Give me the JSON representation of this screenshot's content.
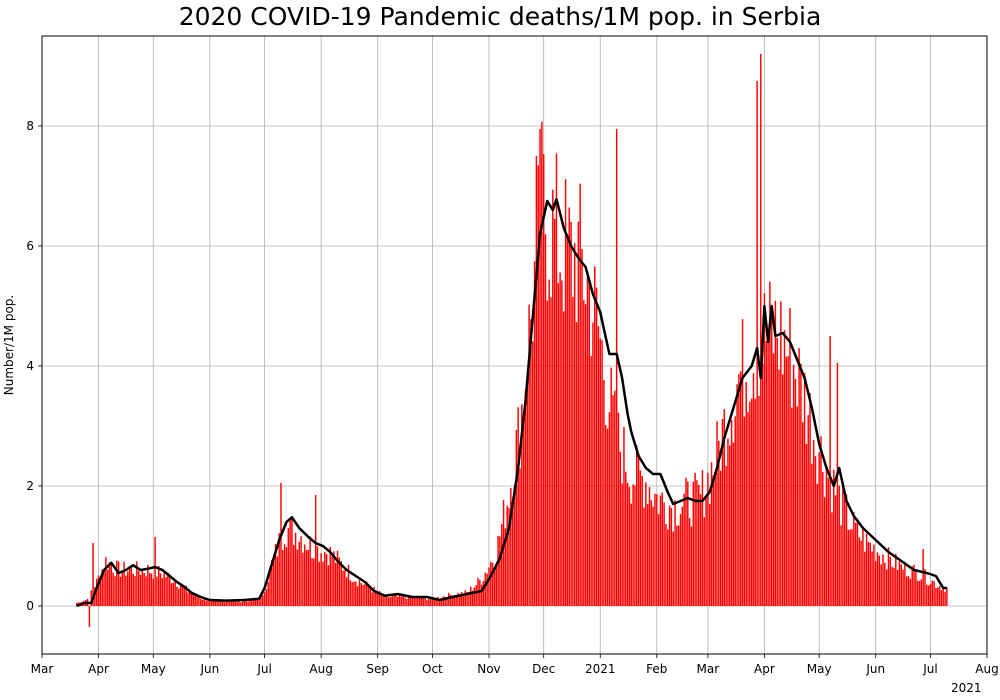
{
  "chart_data": {
    "type": "bar",
    "title": "2020 COVID-19 Pandemic deaths/1M pop. in Serbia",
    "xlabel": "",
    "ylabel": "Number/1M pop.",
    "xlim": [
      "2020-03-01",
      "2021-08-01"
    ],
    "ylim": [
      -0.8,
      9.5
    ],
    "grid": true,
    "x_ticks": [
      {
        "date": "2020-03-01",
        "label": "Mar"
      },
      {
        "date": "2020-04-01",
        "label": "Apr"
      },
      {
        "date": "2020-05-01",
        "label": "May"
      },
      {
        "date": "2020-06-01",
        "label": "Jun"
      },
      {
        "date": "2020-07-01",
        "label": "Jul"
      },
      {
        "date": "2020-08-01",
        "label": "Aug"
      },
      {
        "date": "2020-09-01",
        "label": "Sep"
      },
      {
        "date": "2020-10-01",
        "label": "Oct"
      },
      {
        "date": "2020-11-01",
        "label": "Nov"
      },
      {
        "date": "2020-12-01",
        "label": "Dec"
      },
      {
        "date": "2021-01-01",
        "label": "2021"
      },
      {
        "date": "2021-02-01",
        "label": "Feb"
      },
      {
        "date": "2021-03-01",
        "label": "Mar"
      },
      {
        "date": "2021-04-01",
        "label": "Apr"
      },
      {
        "date": "2021-05-01",
        "label": "May"
      },
      {
        "date": "2021-06-01",
        "label": "Jun"
      },
      {
        "date": "2021-07-01",
        "label": "Jul"
      },
      {
        "date": "2021-08-01",
        "label": "Aug"
      }
    ],
    "x_secondary_label": "2021",
    "y_ticks": [
      0,
      2,
      4,
      6,
      8
    ],
    "bar_color": "#ff0000",
    "line_color": "#000000",
    "series": [
      {
        "type": "bar",
        "anchors": [
          [
            "2020-03-20",
            0.05
          ],
          [
            "2020-03-25",
            0.1
          ],
          [
            "2020-03-31",
            0.4
          ],
          [
            "2020-04-05",
            0.75
          ],
          [
            "2020-04-12",
            0.6
          ],
          [
            "2020-04-20",
            0.6
          ],
          [
            "2020-04-28",
            0.6
          ],
          [
            "2020-05-05",
            0.55
          ],
          [
            "2020-05-12",
            0.45
          ],
          [
            "2020-05-20",
            0.25
          ],
          [
            "2020-05-28",
            0.12
          ],
          [
            "2020-06-05",
            0.08
          ],
          [
            "2020-06-20",
            0.08
          ],
          [
            "2020-06-30",
            0.15
          ],
          [
            "2020-07-05",
            0.7
          ],
          [
            "2020-07-12",
            1.3
          ],
          [
            "2020-07-20",
            1.2
          ],
          [
            "2020-07-28",
            0.95
          ],
          [
            "2020-08-05",
            0.9
          ],
          [
            "2020-08-12",
            0.7
          ],
          [
            "2020-08-20",
            0.45
          ],
          [
            "2020-08-28",
            0.3
          ],
          [
            "2020-09-05",
            0.15
          ],
          [
            "2020-09-20",
            0.15
          ],
          [
            "2020-10-01",
            0.12
          ],
          [
            "2020-10-10",
            0.18
          ],
          [
            "2020-10-20",
            0.22
          ],
          [
            "2020-10-28",
            0.45
          ],
          [
            "2020-11-05",
            0.9
          ],
          [
            "2020-11-12",
            1.9
          ],
          [
            "2020-11-18",
            3.0
          ],
          [
            "2020-11-24",
            4.8
          ],
          [
            "2020-11-30",
            6.6
          ],
          [
            "2020-12-05",
            6.3
          ],
          [
            "2020-12-10",
            6.0
          ],
          [
            "2020-12-15",
            5.8
          ],
          [
            "2020-12-20",
            5.8
          ],
          [
            "2020-12-25",
            5.4
          ],
          [
            "2020-12-31",
            4.6
          ],
          [
            "2021-01-05",
            3.6
          ],
          [
            "2021-01-10",
            2.8
          ],
          [
            "2021-01-18",
            2.2
          ],
          [
            "2021-01-26",
            2.1
          ],
          [
            "2021-02-01",
            1.8
          ],
          [
            "2021-02-10",
            1.65
          ],
          [
            "2021-02-18",
            1.75
          ],
          [
            "2021-02-25",
            1.8
          ],
          [
            "2021-03-05",
            2.4
          ],
          [
            "2021-03-12",
            3.2
          ],
          [
            "2021-03-18",
            3.8
          ],
          [
            "2021-03-25",
            4.2
          ],
          [
            "2021-04-01",
            4.5
          ],
          [
            "2021-04-08",
            4.55
          ],
          [
            "2021-04-15",
            4.2
          ],
          [
            "2021-04-22",
            3.6
          ],
          [
            "2021-04-29",
            2.8
          ],
          [
            "2021-05-06",
            2.2
          ],
          [
            "2021-05-13",
            1.7
          ],
          [
            "2021-05-20",
            1.3
          ],
          [
            "2021-05-27",
            1.05
          ],
          [
            "2021-06-05",
            0.85
          ],
          [
            "2021-06-15",
            0.65
          ],
          [
            "2021-06-25",
            0.55
          ],
          [
            "2021-07-05",
            0.35
          ],
          [
            "2021-07-10",
            0.3
          ]
        ],
        "spikes": [
          [
            "2020-03-27",
            -0.35
          ],
          [
            "2020-03-29",
            1.05
          ],
          [
            "2020-07-10",
            2.05
          ],
          [
            "2020-07-29",
            1.85
          ],
          [
            "2020-05-02",
            1.15
          ],
          [
            "2020-11-27",
            7.5
          ],
          [
            "2020-11-29",
            7.95
          ],
          [
            "2021-01-10",
            7.95
          ],
          [
            "2021-03-28",
            8.75
          ],
          [
            "2021-03-30",
            9.2
          ],
          [
            "2021-05-07",
            4.5
          ],
          [
            "2021-05-11",
            4.05
          ],
          [
            "2021-06-27",
            0.95
          ]
        ]
      },
      {
        "type": "line",
        "name": "",
        "points": [
          [
            "2020-03-20",
            0.0
          ],
          [
            "2020-03-24",
            0.05
          ],
          [
            "2020-03-28",
            0.05
          ],
          [
            "2020-03-31",
            0.3
          ],
          [
            "2020-04-04",
            0.6
          ],
          [
            "2020-04-08",
            0.72
          ],
          [
            "2020-04-12",
            0.55
          ],
          [
            "2020-04-16",
            0.6
          ],
          [
            "2020-04-20",
            0.68
          ],
          [
            "2020-04-24",
            0.6
          ],
          [
            "2020-04-28",
            0.62
          ],
          [
            "2020-05-02",
            0.65
          ],
          [
            "2020-05-06",
            0.6
          ],
          [
            "2020-05-10",
            0.5
          ],
          [
            "2020-05-14",
            0.4
          ],
          [
            "2020-05-18",
            0.32
          ],
          [
            "2020-05-22",
            0.22
          ],
          [
            "2020-05-27",
            0.15
          ],
          [
            "2020-06-01",
            0.1
          ],
          [
            "2020-06-10",
            0.09
          ],
          [
            "2020-06-20",
            0.1
          ],
          [
            "2020-06-28",
            0.12
          ],
          [
            "2020-07-01",
            0.3
          ],
          [
            "2020-07-05",
            0.7
          ],
          [
            "2020-07-09",
            1.1
          ],
          [
            "2020-07-13",
            1.4
          ],
          [
            "2020-07-16",
            1.48
          ],
          [
            "2020-07-20",
            1.3
          ],
          [
            "2020-07-25",
            1.15
          ],
          [
            "2020-07-29",
            1.05
          ],
          [
            "2020-08-02",
            1.0
          ],
          [
            "2020-08-06",
            0.9
          ],
          [
            "2020-08-10",
            0.75
          ],
          [
            "2020-08-15",
            0.6
          ],
          [
            "2020-08-20",
            0.5
          ],
          [
            "2020-08-25",
            0.4
          ],
          [
            "2020-08-30",
            0.25
          ],
          [
            "2020-09-05",
            0.17
          ],
          [
            "2020-09-12",
            0.2
          ],
          [
            "2020-09-20",
            0.15
          ],
          [
            "2020-09-28",
            0.15
          ],
          [
            "2020-10-05",
            0.1
          ],
          [
            "2020-10-12",
            0.15
          ],
          [
            "2020-10-20",
            0.2
          ],
          [
            "2020-10-28",
            0.25
          ],
          [
            "2020-11-02",
            0.5
          ],
          [
            "2020-11-07",
            0.8
          ],
          [
            "2020-11-12",
            1.3
          ],
          [
            "2020-11-17",
            2.3
          ],
          [
            "2020-11-21",
            3.4
          ],
          [
            "2020-11-25",
            4.8
          ],
          [
            "2020-11-29",
            6.2
          ],
          [
            "2020-12-03",
            6.75
          ],
          [
            "2020-12-06",
            6.6
          ],
          [
            "2020-12-08",
            6.78
          ],
          [
            "2020-12-12",
            6.3
          ],
          [
            "2020-12-16",
            6.0
          ],
          [
            "2020-12-20",
            5.8
          ],
          [
            "2020-12-24",
            5.65
          ],
          [
            "2020-12-28",
            5.2
          ],
          [
            "2021-01-01",
            4.9
          ],
          [
            "2021-01-06",
            4.2
          ],
          [
            "2021-01-10",
            4.2
          ],
          [
            "2021-01-13",
            3.8
          ],
          [
            "2021-01-16",
            3.2
          ],
          [
            "2021-01-18",
            2.9
          ],
          [
            "2021-01-22",
            2.5
          ],
          [
            "2021-01-26",
            2.3
          ],
          [
            "2021-01-30",
            2.2
          ],
          [
            "2021-02-03",
            2.2
          ],
          [
            "2021-02-07",
            1.9
          ],
          [
            "2021-02-10",
            1.7
          ],
          [
            "2021-02-14",
            1.75
          ],
          [
            "2021-02-18",
            1.8
          ],
          [
            "2021-02-22",
            1.75
          ],
          [
            "2021-02-26",
            1.75
          ],
          [
            "2021-03-02",
            1.9
          ],
          [
            "2021-03-06",
            2.3
          ],
          [
            "2021-03-10",
            2.8
          ],
          [
            "2021-03-15",
            3.3
          ],
          [
            "2021-03-20",
            3.8
          ],
          [
            "2021-03-25",
            4.0
          ],
          [
            "2021-03-28",
            4.3
          ],
          [
            "2021-03-30",
            3.8
          ],
          [
            "2021-04-01",
            5.0
          ],
          [
            "2021-04-03",
            4.4
          ],
          [
            "2021-04-05",
            5.0
          ],
          [
            "2021-04-07",
            4.5
          ],
          [
            "2021-04-11",
            4.55
          ],
          [
            "2021-04-15",
            4.4
          ],
          [
            "2021-04-19",
            4.1
          ],
          [
            "2021-04-23",
            3.8
          ],
          [
            "2021-04-27",
            3.3
          ],
          [
            "2021-05-01",
            2.7
          ],
          [
            "2021-05-05",
            2.3
          ],
          [
            "2021-05-09",
            2.0
          ],
          [
            "2021-05-12",
            2.3
          ],
          [
            "2021-05-16",
            1.75
          ],
          [
            "2021-05-20",
            1.5
          ],
          [
            "2021-05-25",
            1.3
          ],
          [
            "2021-06-01",
            1.1
          ],
          [
            "2021-06-08",
            0.9
          ],
          [
            "2021-06-15",
            0.75
          ],
          [
            "2021-06-22",
            0.6
          ],
          [
            "2021-06-29",
            0.55
          ],
          [
            "2021-07-04",
            0.5
          ],
          [
            "2021-07-08",
            0.3
          ],
          [
            "2021-07-10",
            0.3
          ]
        ]
      }
    ]
  }
}
